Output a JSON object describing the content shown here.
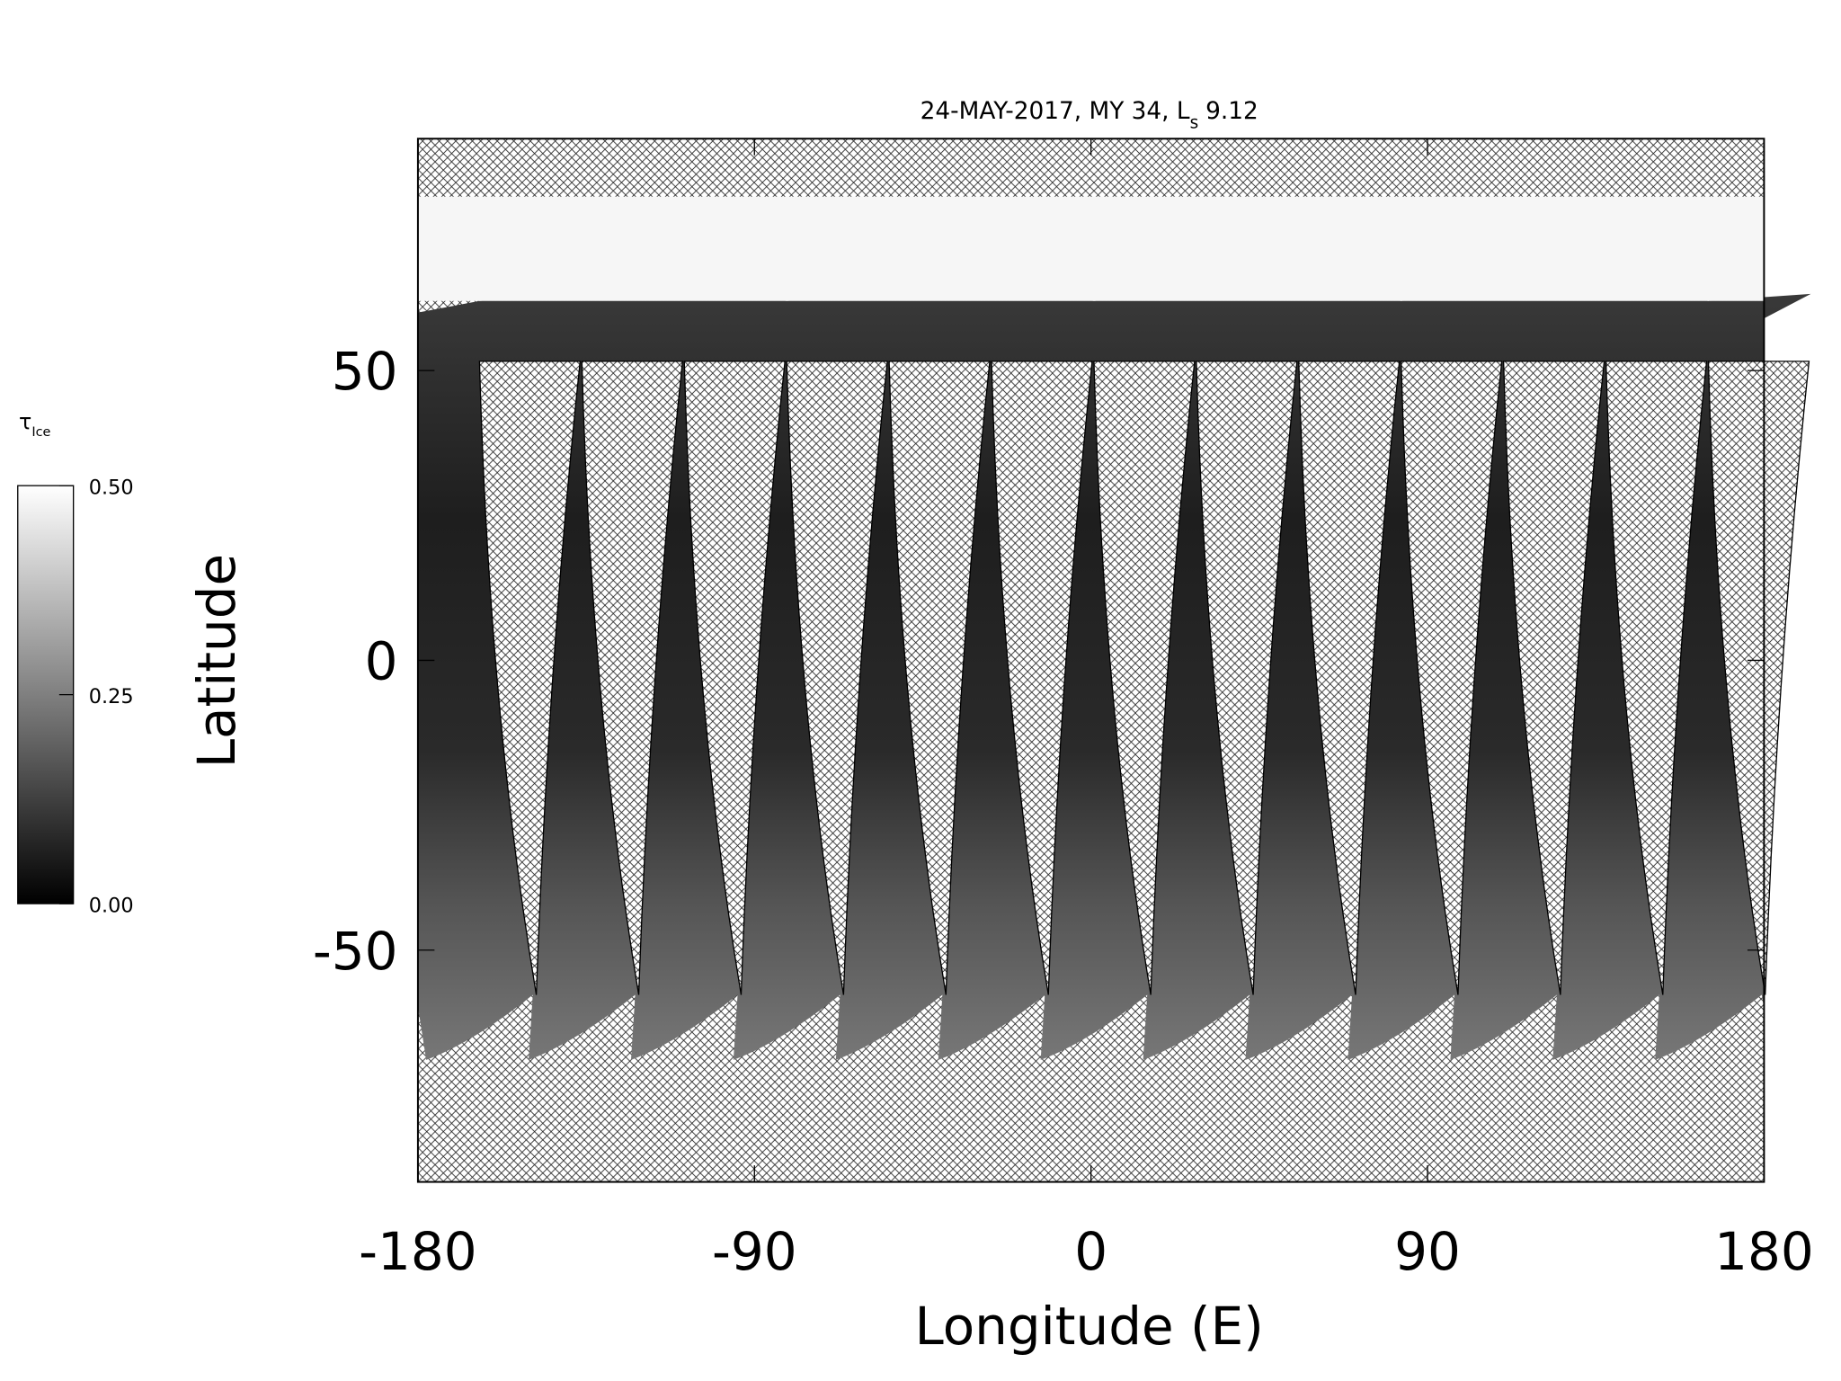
{
  "chart_data": {
    "type": "map",
    "title": {
      "text": "24-MAY-2017, MY 34,  L",
      "sub": "s",
      "after": "9.12"
    },
    "xlabel": "Longitude (E)",
    "ylabel": "Latitude",
    "xlim": [
      -180,
      180
    ],
    "ylim": [
      -90,
      90
    ],
    "xticks": [
      -180,
      -90,
      0,
      90,
      180
    ],
    "yticks": [
      -50,
      0,
      50
    ],
    "colorbar": {
      "label": "τ",
      "label_sub": "Ice",
      "lim": [
        0,
        0.5
      ],
      "ticks": [
        {
          "value": 0,
          "label": "0.00"
        },
        {
          "value": 0.25,
          "label": "0.25"
        },
        {
          "value": 0.5,
          "label": "0.50"
        }
      ],
      "colors": [
        "#000000",
        "#ffffff"
      ]
    }
  }
}
